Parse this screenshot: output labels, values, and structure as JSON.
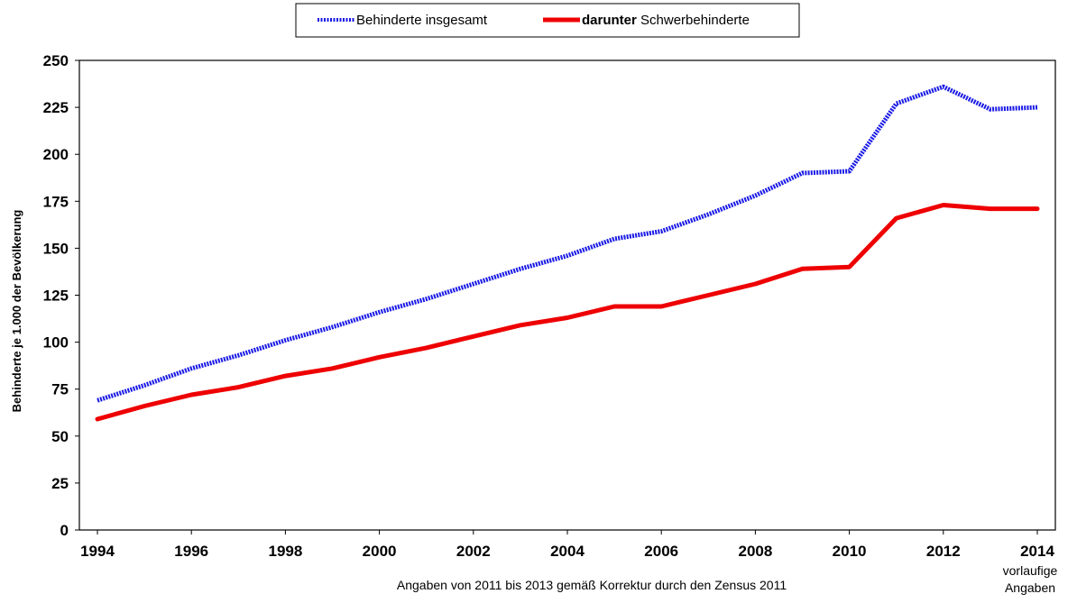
{
  "chart_data": {
    "type": "line",
    "ylabel": "Behinderte je 1.000 der Bevölkerung",
    "footnote": "Angaben von 2011 bis 2013 gemäß Korrektur durch den Zensus 2011",
    "x_note": [
      "vorlaufige",
      "Angaben"
    ],
    "xlim": [
      1994,
      2014
    ],
    "ylim": [
      0,
      250
    ],
    "x_ticks": [
      1994,
      1996,
      1998,
      2000,
      2002,
      2004,
      2006,
      2008,
      2010,
      2012,
      2014
    ],
    "y_ticks": [
      0,
      25,
      50,
      75,
      100,
      125,
      150,
      175,
      200,
      225,
      250
    ],
    "grid": true,
    "legend_position": "top-center",
    "series": [
      {
        "name": "Behinderte insgesamt",
        "color": "#1a1ae6",
        "style": "dotted-thick",
        "x": [
          1994,
          1995,
          1996,
          1997,
          1998,
          1999,
          2000,
          2001,
          2002,
          2003,
          2004,
          2005,
          2006,
          2007,
          2008,
          2009,
          2010,
          2011,
          2012,
          2013,
          2014
        ],
        "values": [
          69,
          77,
          86,
          93,
          101,
          108,
          116,
          123,
          131,
          139,
          146,
          155,
          159,
          168,
          178,
          190,
          191,
          227,
          236,
          224,
          225
        ]
      },
      {
        "name_parts": [
          "darunter",
          " Schwerbehinderte"
        ],
        "color": "#ee0000",
        "style": "solid-thick",
        "x": [
          1994,
          1995,
          1996,
          1997,
          1998,
          1999,
          2000,
          2001,
          2002,
          2003,
          2004,
          2005,
          2006,
          2007,
          2008,
          2009,
          2010,
          2011,
          2012,
          2013,
          2014
        ],
        "values": [
          59,
          66,
          72,
          76,
          82,
          86,
          92,
          97,
          103,
          109,
          113,
          119,
          119,
          125,
          131,
          139,
          140,
          166,
          173,
          171,
          171
        ]
      }
    ]
  }
}
